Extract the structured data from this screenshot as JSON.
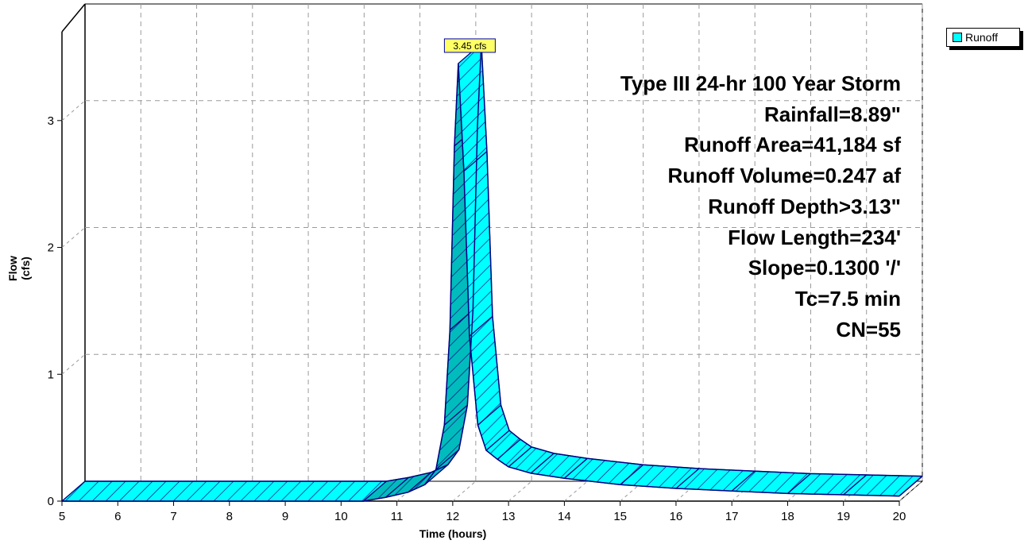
{
  "chart_data": {
    "type": "area",
    "xlabel": "Time  (hours)",
    "ylabel": "Flow  (cfs)",
    "xlim": [
      5,
      20
    ],
    "ylim": [
      0,
      3.7
    ],
    "xticks": [
      5,
      6,
      7,
      8,
      9,
      10,
      11,
      12,
      13,
      14,
      15,
      16,
      17,
      18,
      19,
      20
    ],
    "yticks": [
      0,
      1,
      2,
      3
    ],
    "grid": true,
    "legend_position": "top-right",
    "series": [
      {
        "name": "Runoff",
        "color": "#00ffff",
        "x": [
          5,
          10.4,
          10.8,
          11.2,
          11.5,
          11.7,
          11.85,
          11.95,
          12.03,
          12.1,
          12.2,
          12.3,
          12.45,
          12.6,
          12.8,
          13.0,
          13.4,
          14,
          15,
          16,
          17,
          18,
          19,
          20
        ],
        "y": [
          0,
          0,
          0.03,
          0.07,
          0.13,
          0.25,
          0.6,
          1.35,
          2.8,
          3.45,
          2.6,
          1.3,
          0.6,
          0.4,
          0.33,
          0.27,
          0.22,
          0.18,
          0.13,
          0.1,
          0.08,
          0.06,
          0.05,
          0.04
        ]
      }
    ],
    "annotations": [
      {
        "text": "3.45 cfs",
        "x": 12.1,
        "y": 3.45
      }
    ]
  },
  "legend": {
    "label": "Runoff"
  },
  "info_lines": [
    "Type III 24-hr 100 Year Storm",
    "Rainfall=8.89\"",
    "Runoff Area=41,184 sf",
    "Runoff Volume=0.247 af",
    "Runoff Depth>3.13\"",
    "Flow Length=234'",
    "Slope=0.1300 '/'",
    "Tc=7.5 min",
    "CN=55"
  ]
}
